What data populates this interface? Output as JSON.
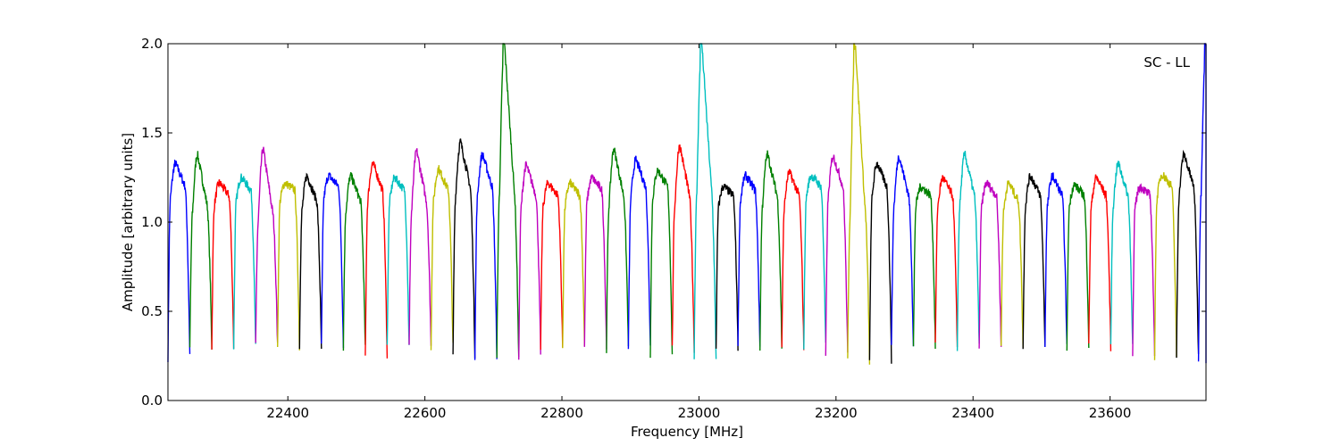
{
  "chart_data": {
    "type": "line",
    "title": "",
    "xlabel": "Frequency [MHz]",
    "ylabel": "Amplitude [arbitrary units]",
    "annotation": "SC - LL",
    "xlim": [
      22225,
      23740
    ],
    "ylim": [
      0.0,
      2.0
    ],
    "xticks": [
      22400,
      22600,
      22800,
      23000,
      23200,
      23400,
      23600
    ],
    "xtick_labels": [
      "22400",
      "22600",
      "22800",
      "23000",
      "23200",
      "23400",
      "23600"
    ],
    "yticks": [
      0.0,
      0.5,
      1.0,
      1.5,
      2.0
    ],
    "ytick_labels": [
      "0.0",
      "0.5",
      "1.0",
      "1.5",
      "2.0"
    ],
    "grid": false,
    "channel_width_mhz": 32,
    "colors": [
      "#0000ff",
      "#008000",
      "#ff0000",
      "#00bfbf",
      "#bf00bf",
      "#bfbf00",
      "#000000"
    ],
    "segments": [
      {
        "start": 22225,
        "color": "#0000ff",
        "peak": 1.33,
        "plateau": 1.2,
        "min": 0.24
      },
      {
        "start": 22257,
        "color": "#008000",
        "peak": 1.38,
        "plateau": 1.1,
        "min": 0.3
      },
      {
        "start": 22289,
        "color": "#ff0000",
        "peak": 1.22,
        "plateau": 1.15,
        "min": 0.3
      },
      {
        "start": 22321,
        "color": "#00bfbf",
        "peak": 1.25,
        "plateau": 1.18,
        "min": 0.3
      },
      {
        "start": 22353,
        "color": "#bf00bf",
        "peak": 1.41,
        "plateau": 1.05,
        "min": 0.3
      },
      {
        "start": 22385,
        "color": "#bfbf00",
        "peak": 1.22,
        "plateau": 1.18,
        "min": 0.29
      },
      {
        "start": 22417,
        "color": "#000000",
        "peak": 1.26,
        "plateau": 1.12,
        "min": 0.29
      },
      {
        "start": 22449,
        "color": "#0000ff",
        "peak": 1.26,
        "plateau": 1.2,
        "min": 0.3
      },
      {
        "start": 22481,
        "color": "#008000",
        "peak": 1.26,
        "plateau": 1.12,
        "min": 0.3
      },
      {
        "start": 22513,
        "color": "#ff0000",
        "peak": 1.33,
        "plateau": 1.18,
        "min": 0.23
      },
      {
        "start": 22545,
        "color": "#00bfbf",
        "peak": 1.25,
        "plateau": 1.18,
        "min": 0.3
      },
      {
        "start": 22577,
        "color": "#bf00bf",
        "peak": 1.4,
        "plateau": 1.12,
        "min": 0.3
      },
      {
        "start": 22609,
        "color": "#bfbf00",
        "peak": 1.3,
        "plateau": 1.18,
        "min": 0.3
      },
      {
        "start": 22641,
        "color": "#000000",
        "peak": 1.45,
        "plateau": 1.2,
        "min": 0.25
      },
      {
        "start": 22673,
        "color": "#0000ff",
        "peak": 1.38,
        "plateau": 1.2,
        "min": 0.25
      },
      {
        "start": 22705,
        "color": "#008000",
        "peak": 2.0,
        "plateau": 1.2,
        "min": 0.22
      },
      {
        "start": 22737,
        "color": "#bf00bf",
        "peak": 1.32,
        "plateau": 1.15,
        "min": 0.24
      },
      {
        "start": 22769,
        "color": "#ff0000",
        "peak": 1.22,
        "plateau": 1.15,
        "min": 0.3
      },
      {
        "start": 22801,
        "color": "#bfbf00",
        "peak": 1.22,
        "plateau": 1.15,
        "min": 0.3
      },
      {
        "start": 22833,
        "color": "#bf00bf",
        "peak": 1.25,
        "plateau": 1.18,
        "min": 0.3
      },
      {
        "start": 22865,
        "color": "#008000",
        "peak": 1.41,
        "plateau": 1.15,
        "min": 0.29
      },
      {
        "start": 22897,
        "color": "#0000ff",
        "peak": 1.35,
        "plateau": 1.2,
        "min": 0.3
      },
      {
        "start": 22929,
        "color": "#008000",
        "peak": 1.29,
        "plateau": 1.2,
        "min": 0.26
      },
      {
        "start": 22961,
        "color": "#ff0000",
        "peak": 1.43,
        "plateau": 1.15,
        "min": 0.29
      },
      {
        "start": 22993,
        "color": "#00bfbf",
        "peak": 2.0,
        "plateau": 1.2,
        "min": 0.23
      },
      {
        "start": 23025,
        "color": "#000000",
        "peak": 1.2,
        "plateau": 1.15,
        "min": 0.3
      },
      {
        "start": 23057,
        "color": "#0000ff",
        "peak": 1.26,
        "plateau": 1.18,
        "min": 0.3
      },
      {
        "start": 23089,
        "color": "#008000",
        "peak": 1.38,
        "plateau": 1.15,
        "min": 0.3
      },
      {
        "start": 23121,
        "color": "#ff0000",
        "peak": 1.28,
        "plateau": 1.15,
        "min": 0.3
      },
      {
        "start": 23153,
        "color": "#00bfbf",
        "peak": 1.26,
        "plateau": 1.2,
        "min": 0.3
      },
      {
        "start": 23185,
        "color": "#bf00bf",
        "peak": 1.37,
        "plateau": 1.2,
        "min": 0.25
      },
      {
        "start": 23217,
        "color": "#bfbf00",
        "peak": 2.0,
        "plateau": 1.1,
        "min": 0.22
      },
      {
        "start": 23249,
        "color": "#000000",
        "peak": 1.33,
        "plateau": 1.2,
        "min": 0.23
      },
      {
        "start": 23281,
        "color": "#0000ff",
        "peak": 1.37,
        "plateau": 1.15,
        "min": 0.3
      },
      {
        "start": 23313,
        "color": "#008000",
        "peak": 1.2,
        "plateau": 1.15,
        "min": 0.3
      },
      {
        "start": 23345,
        "color": "#ff0000",
        "peak": 1.25,
        "plateau": 1.15,
        "min": 0.3
      },
      {
        "start": 23377,
        "color": "#00bfbf",
        "peak": 1.38,
        "plateau": 1.15,
        "min": 0.3
      },
      {
        "start": 23409,
        "color": "#bf00bf",
        "peak": 1.22,
        "plateau": 1.15,
        "min": 0.3
      },
      {
        "start": 23441,
        "color": "#bfbf00",
        "peak": 1.22,
        "plateau": 1.12,
        "min": 0.3
      },
      {
        "start": 23473,
        "color": "#000000",
        "peak": 1.26,
        "plateau": 1.15,
        "min": 0.3
      },
      {
        "start": 23505,
        "color": "#0000ff",
        "peak": 1.26,
        "plateau": 1.15,
        "min": 0.3
      },
      {
        "start": 23537,
        "color": "#008000",
        "peak": 1.21,
        "plateau": 1.15,
        "min": 0.3
      },
      {
        "start": 23569,
        "color": "#ff0000",
        "peak": 1.25,
        "plateau": 1.15,
        "min": 0.3
      },
      {
        "start": 23601,
        "color": "#00bfbf",
        "peak": 1.33,
        "plateau": 1.15,
        "min": 0.3
      },
      {
        "start": 23633,
        "color": "#bf00bf",
        "peak": 1.2,
        "plateau": 1.15,
        "min": 0.25
      },
      {
        "start": 23665,
        "color": "#bfbf00",
        "peak": 1.27,
        "plateau": 1.2,
        "min": 0.25
      },
      {
        "start": 23697,
        "color": "#000000",
        "peak": 1.38,
        "plateau": 1.2,
        "min": 0.25
      },
      {
        "start": 23729,
        "color": "#0000ff",
        "peak": 2.0,
        "plateau": 1.2,
        "min": 0.22
      }
    ]
  }
}
